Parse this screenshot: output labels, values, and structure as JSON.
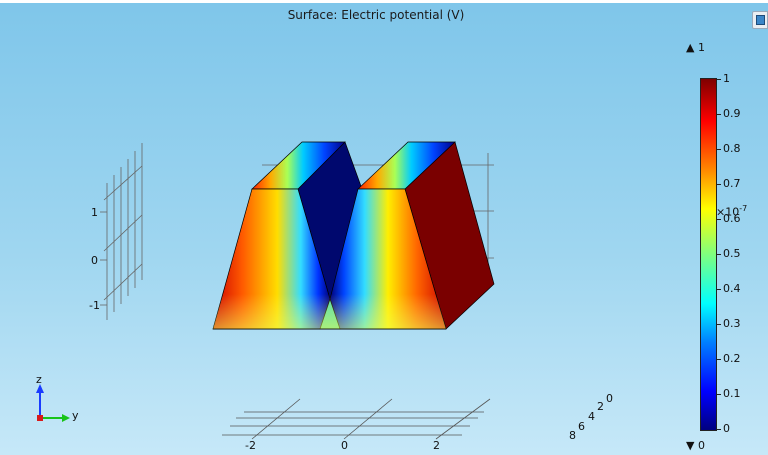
{
  "plot": {
    "title": "Surface: Electric potential (V)"
  },
  "colorbar": {
    "max_marker": "▲ 1",
    "min_marker": "▼ 0",
    "ticks": [
      "1",
      "0.9",
      "0.8",
      "0.7",
      "0.6",
      "0.5",
      "0.4",
      "0.3",
      "0.2",
      "0.1",
      "0"
    ],
    "exponent": "×10",
    "exponent_power": "-7",
    "colors": [
      "#00007f",
      "#0000ff",
      "#007fff",
      "#00ffff",
      "#7fff7f",
      "#ffff00",
      "#ff7f00",
      "#ff0000",
      "#7f0000"
    ]
  },
  "axes": {
    "z_ticks": [
      "1",
      "0",
      "-1"
    ],
    "y_ticks": [
      "-2",
      "0",
      "2"
    ],
    "x_ticks": [
      "0",
      "2",
      "4",
      "6",
      "8"
    ]
  },
  "triad": {
    "z": "z",
    "y": "y"
  }
}
